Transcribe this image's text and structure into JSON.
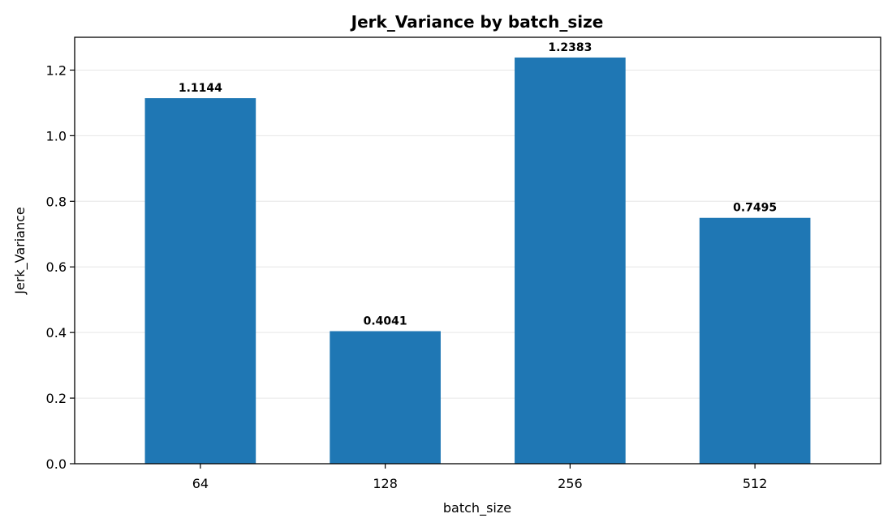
{
  "chart_data": {
    "type": "bar",
    "title": "Jerk_Variance by batch_size",
    "xlabel": "batch_size",
    "ylabel": "Jerk_Variance",
    "categories": [
      "64",
      "128",
      "256",
      "512"
    ],
    "values": [
      1.1144,
      0.4041,
      1.2383,
      0.7495
    ],
    "data_labels": [
      "1.1144",
      "0.4041",
      "1.2383",
      "0.7495"
    ],
    "ylim": [
      0,
      1.3
    ],
    "yticks": [
      0.0,
      0.2,
      0.4,
      0.6,
      0.8,
      1.0,
      1.2
    ],
    "ytick_labels": [
      "0.0",
      "0.2",
      "0.4",
      "0.6",
      "0.8",
      "1.0",
      "1.2"
    ],
    "grid": "horizontal",
    "legend": "none",
    "colors": {
      "bar": "#1f77b4",
      "grid": "#e6e6e6",
      "axis": "#000000"
    }
  }
}
